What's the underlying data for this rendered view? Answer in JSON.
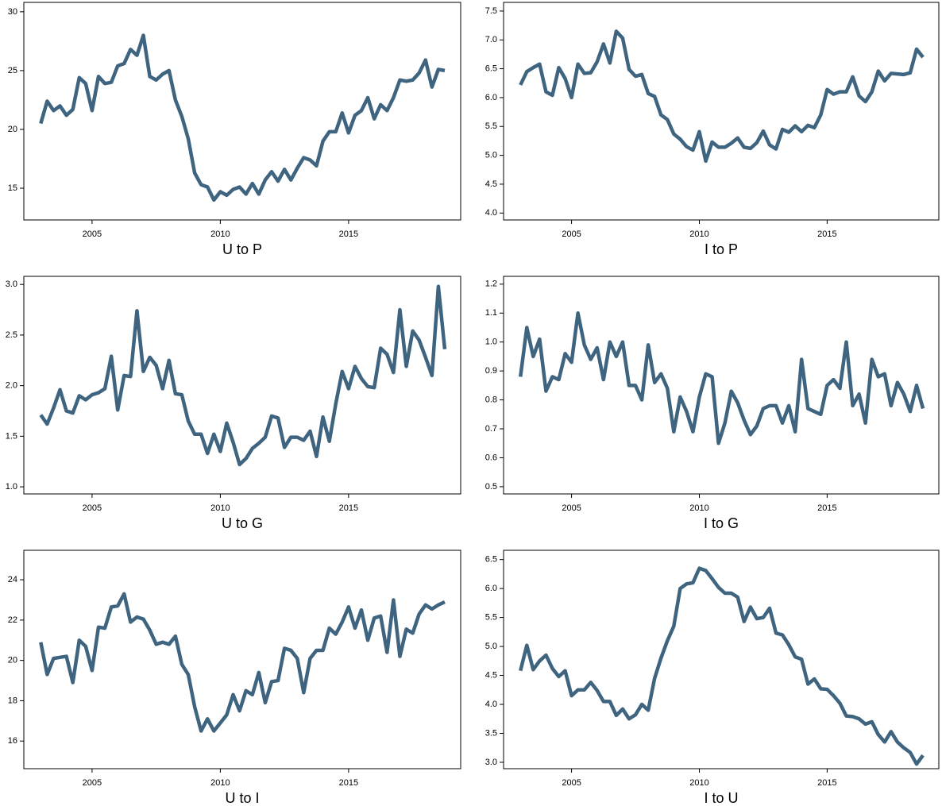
{
  "chart_data": [
    {
      "type": "line",
      "xlabel": "U to P",
      "color": "#3e6480",
      "xlim": [
        2002.34,
        2019.37
      ],
      "xticks": [
        2005,
        2010,
        2015
      ],
      "ylim": [
        12.3,
        30.8
      ],
      "yticks": [
        15,
        20,
        25,
        30
      ],
      "x": [
        2003,
        2003.25,
        2003.5,
        2003.75,
        2004,
        2004.25,
        2004.5,
        2004.75,
        2005,
        2005.25,
        2005.5,
        2005.75,
        2006,
        2006.25,
        2006.5,
        2006.75,
        2007,
        2007.25,
        2007.5,
        2007.75,
        2008,
        2008.25,
        2008.5,
        2008.75,
        2009,
        2009.25,
        2009.5,
        2009.75,
        2010,
        2010.25,
        2010.5,
        2010.75,
        2011,
        2011.25,
        2011.5,
        2011.75,
        2012,
        2012.25,
        2012.5,
        2012.75,
        2013,
        2013.25,
        2013.5,
        2013.75,
        2014,
        2014.25,
        2014.5,
        2014.75,
        2015,
        2015.25,
        2015.5,
        2015.75,
        2016,
        2016.25,
        2016.5,
        2016.75,
        2017,
        2017.25,
        2017.5,
        2017.75,
        2018,
        2018.25,
        2018.5,
        2018.75
      ],
      "values": [
        20.5,
        22.4,
        21.6,
        22.0,
        21.2,
        21.7,
        24.4,
        23.9,
        21.6,
        24.5,
        23.9,
        24.0,
        25.4,
        25.6,
        26.8,
        26.3,
        28.0,
        24.5,
        24.2,
        24.7,
        25.0,
        22.5,
        21.1,
        19.2,
        16.3,
        15.3,
        15.1,
        14.0,
        14.7,
        14.4,
        14.9,
        15.1,
        14.5,
        15.4,
        14.5,
        15.7,
        16.4,
        15.6,
        16.6,
        15.7,
        16.7,
        17.6,
        17.4,
        16.9,
        19.0,
        19.8,
        19.8,
        21.4,
        19.7,
        21.2,
        21.6,
        22.7,
        20.9,
        22.1,
        21.6,
        22.7,
        24.2,
        24.1,
        24.2,
        24.8,
        25.9,
        23.6,
        25.1,
        25.0
      ]
    },
    {
      "type": "line",
      "xlabel": "I to P",
      "color": "#3e6480",
      "xlim": [
        2002.34,
        2019.37
      ],
      "xticks": [
        2005,
        2010,
        2015
      ],
      "ylim": [
        3.88,
        7.65
      ],
      "yticks": [
        {
          "value": 4,
          "label": "4.0"
        },
        4.5,
        {
          "value": 5,
          "label": "5.0"
        },
        5.5,
        {
          "value": 6,
          "label": "6.0"
        },
        6.5,
        {
          "value": 7,
          "label": "7.0"
        },
        7.5
      ],
      "x": [
        2003,
        2003.25,
        2003.5,
        2003.75,
        2004,
        2004.25,
        2004.5,
        2004.75,
        2005,
        2005.25,
        2005.5,
        2005.75,
        2006,
        2006.25,
        2006.5,
        2006.75,
        2007,
        2007.25,
        2007.5,
        2007.75,
        2008,
        2008.25,
        2008.5,
        2008.75,
        2009,
        2009.25,
        2009.5,
        2009.75,
        2010,
        2010.25,
        2010.5,
        2010.75,
        2011,
        2011.25,
        2011.5,
        2011.75,
        2012,
        2012.25,
        2012.5,
        2012.75,
        2013,
        2013.25,
        2013.5,
        2013.75,
        2014,
        2014.25,
        2014.5,
        2014.75,
        2015,
        2015.25,
        2015.5,
        2015.75,
        2016,
        2016.25,
        2016.5,
        2016.75,
        2017,
        2017.25,
        2017.5,
        2017.75,
        2018,
        2018.25,
        2018.5,
        2018.75
      ],
      "values": [
        6.22,
        6.45,
        6.52,
        6.58,
        6.1,
        6.04,
        6.52,
        6.33,
        6.0,
        6.58,
        6.42,
        6.43,
        6.62,
        6.93,
        6.6,
        7.15,
        7.03,
        6.49,
        6.37,
        6.4,
        6.07,
        6.02,
        5.7,
        5.62,
        5.37,
        5.28,
        5.15,
        5.09,
        5.41,
        4.9,
        5.23,
        5.14,
        5.14,
        5.21,
        5.3,
        5.14,
        5.12,
        5.22,
        5.42,
        5.18,
        5.11,
        5.45,
        5.4,
        5.51,
        5.41,
        5.52,
        5.48,
        5.7,
        6.14,
        6.06,
        6.1,
        6.1,
        6.36,
        6.03,
        5.93,
        6.1,
        6.46,
        6.29,
        6.42,
        6.41,
        6.4,
        6.43,
        6.84,
        6.7
      ]
    },
    {
      "type": "line",
      "xlabel": "U to G",
      "color": "#3e6480",
      "xlim": [
        2002.34,
        2019.37
      ],
      "xticks": [
        2005,
        2010,
        2015
      ],
      "ylim": [
        0.93,
        3.08
      ],
      "yticks": [
        {
          "value": 1,
          "label": "1.0"
        },
        1.5,
        {
          "value": 2,
          "label": "2.0"
        },
        2.5,
        {
          "value": 3,
          "label": "3.0"
        }
      ],
      "x": [
        2003,
        2003.25,
        2003.5,
        2003.75,
        2004,
        2004.25,
        2004.5,
        2004.75,
        2005,
        2005.25,
        2005.5,
        2005.75,
        2006,
        2006.25,
        2006.5,
        2006.75,
        2007,
        2007.25,
        2007.5,
        2007.75,
        2008,
        2008.25,
        2008.5,
        2008.75,
        2009,
        2009.25,
        2009.5,
        2009.75,
        2010,
        2010.25,
        2010.5,
        2010.75,
        2011,
        2011.25,
        2011.5,
        2011.75,
        2012,
        2012.25,
        2012.5,
        2012.75,
        2013,
        2013.25,
        2013.5,
        2013.75,
        2014,
        2014.25,
        2014.5,
        2014.75,
        2015,
        2015.25,
        2015.5,
        2015.75,
        2016,
        2016.25,
        2016.5,
        2016.75,
        2017,
        2017.25,
        2017.5,
        2017.75,
        2018,
        2018.25,
        2018.5,
        2018.75
      ],
      "values": [
        1.71,
        1.62,
        1.78,
        1.96,
        1.75,
        1.73,
        1.9,
        1.86,
        1.91,
        1.93,
        1.97,
        2.29,
        1.76,
        2.1,
        2.09,
        2.74,
        2.14,
        2.28,
        2.2,
        1.97,
        2.25,
        1.92,
        1.91,
        1.65,
        1.52,
        1.52,
        1.33,
        1.52,
        1.35,
        1.63,
        1.44,
        1.22,
        1.28,
        1.38,
        1.43,
        1.49,
        1.7,
        1.68,
        1.39,
        1.49,
        1.49,
        1.46,
        1.55,
        1.3,
        1.69,
        1.45,
        1.82,
        2.14,
        1.97,
        2.19,
        2.07,
        1.99,
        1.98,
        2.37,
        2.31,
        2.13,
        2.75,
        2.19,
        2.54,
        2.45,
        2.28,
        2.1,
        2.98,
        2.36
      ]
    },
    {
      "type": "line",
      "xlabel": "I to G",
      "color": "#3e6480",
      "xlim": [
        2002.34,
        2019.37
      ],
      "xticks": [
        2005,
        2010,
        2015
      ],
      "ylim": [
        0.475,
        1.227
      ],
      "yticks": [
        0.5,
        0.6,
        0.7,
        0.8,
        0.9,
        {
          "value": 1,
          "label": "1.0"
        },
        1.1,
        1.2
      ],
      "x": [
        2003,
        2003.25,
        2003.5,
        2003.75,
        2004,
        2004.25,
        2004.5,
        2004.75,
        2005,
        2005.25,
        2005.5,
        2005.75,
        2006,
        2006.25,
        2006.5,
        2006.75,
        2007,
        2007.25,
        2007.5,
        2007.75,
        2008,
        2008.25,
        2008.5,
        2008.75,
        2009,
        2009.25,
        2009.5,
        2009.75,
        2010,
        2010.25,
        2010.5,
        2010.75,
        2011,
        2011.25,
        2011.5,
        2011.75,
        2012,
        2012.25,
        2012.5,
        2012.75,
        2013,
        2013.25,
        2013.5,
        2013.75,
        2014,
        2014.25,
        2014.5,
        2014.75,
        2015,
        2015.25,
        2015.5,
        2015.75,
        2016,
        2016.25,
        2016.5,
        2016.75,
        2017,
        2017.25,
        2017.5,
        2017.75,
        2018,
        2018.25,
        2018.5,
        2018.75
      ],
      "values": [
        0.88,
        1.05,
        0.95,
        1.01,
        0.83,
        0.88,
        0.87,
        0.96,
        0.93,
        1.1,
        0.99,
        0.94,
        0.98,
        0.87,
        1.0,
        0.95,
        1.0,
        0.85,
        0.85,
        0.8,
        0.99,
        0.86,
        0.89,
        0.84,
        0.69,
        0.81,
        0.76,
        0.69,
        0.81,
        0.89,
        0.88,
        0.65,
        0.72,
        0.83,
        0.79,
        0.73,
        0.68,
        0.71,
        0.77,
        0.78,
        0.78,
        0.72,
        0.78,
        0.69,
        0.94,
        0.77,
        0.76,
        0.75,
        0.85,
        0.87,
        0.84,
        1.0,
        0.78,
        0.82,
        0.72,
        0.94,
        0.88,
        0.89,
        0.78,
        0.86,
        0.82,
        0.76,
        0.85,
        0.77
      ]
    },
    {
      "type": "line",
      "xlabel": "U to I",
      "color": "#3e6480",
      "xlim": [
        2002.34,
        2019.37
      ],
      "xticks": [
        2005,
        2010,
        2015
      ],
      "ylim": [
        14.63,
        25.46
      ],
      "yticks": [
        16,
        18,
        20,
        22,
        24
      ],
      "x": [
        2003,
        2003.25,
        2003.5,
        2003.75,
        2004,
        2004.25,
        2004.5,
        2004.75,
        2005,
        2005.25,
        2005.5,
        2005.75,
        2006,
        2006.25,
        2006.5,
        2006.75,
        2007,
        2007.25,
        2007.5,
        2007.75,
        2008,
        2008.25,
        2008.5,
        2008.75,
        2009,
        2009.25,
        2009.5,
        2009.75,
        2010,
        2010.25,
        2010.5,
        2010.75,
        2011,
        2011.25,
        2011.5,
        2011.75,
        2012,
        2012.25,
        2012.5,
        2012.75,
        2013,
        2013.25,
        2013.5,
        2013.75,
        2014,
        2014.25,
        2014.5,
        2014.75,
        2015,
        2015.25,
        2015.5,
        2015.75,
        2016,
        2016.25,
        2016.5,
        2016.75,
        2017,
        2017.25,
        2017.5,
        2017.75,
        2018,
        2018.25,
        2018.5,
        2018.75
      ],
      "values": [
        20.9,
        19.3,
        20.1,
        20.15,
        20.2,
        18.9,
        21.0,
        20.7,
        19.5,
        21.65,
        21.6,
        22.65,
        22.7,
        23.3,
        21.9,
        22.15,
        22.05,
        21.5,
        20.8,
        20.9,
        20.8,
        21.2,
        19.8,
        19.3,
        17.7,
        16.5,
        17.1,
        16.5,
        16.9,
        17.3,
        18.3,
        17.5,
        18.5,
        18.3,
        19.4,
        17.9,
        18.95,
        19.0,
        20.6,
        20.5,
        20.1,
        18.4,
        20.1,
        20.5,
        20.5,
        21.6,
        21.3,
        21.9,
        22.65,
        21.6,
        22.5,
        21.0,
        22.1,
        22.2,
        20.4,
        23.0,
        20.2,
        21.55,
        21.35,
        22.3,
        22.75,
        22.55,
        22.75,
        22.9
      ]
    },
    {
      "type": "line",
      "xlabel": "I to U",
      "color": "#3e6480",
      "xlim": [
        2002.34,
        2019.37
      ],
      "xticks": [
        2005,
        2010,
        2015
      ],
      "ylim": [
        2.89,
        6.66
      ],
      "yticks": [
        {
          "value": 3,
          "label": "3.0"
        },
        3.5,
        {
          "value": 4,
          "label": "4.0"
        },
        4.5,
        {
          "value": 5,
          "label": "5.0"
        },
        5.5,
        {
          "value": 6,
          "label": "6.0"
        },
        6.5
      ],
      "x": [
        2003,
        2003.25,
        2003.5,
        2003.75,
        2004,
        2004.25,
        2004.5,
        2004.75,
        2005,
        2005.25,
        2005.5,
        2005.75,
        2006,
        2006.25,
        2006.5,
        2006.75,
        2007,
        2007.25,
        2007.5,
        2007.75,
        2008,
        2008.25,
        2008.5,
        2008.75,
        2009,
        2009.25,
        2009.5,
        2009.75,
        2010,
        2010.25,
        2010.5,
        2010.75,
        2011,
        2011.25,
        2011.5,
        2011.75,
        2012,
        2012.25,
        2012.5,
        2012.75,
        2013,
        2013.25,
        2013.5,
        2013.75,
        2014,
        2014.25,
        2014.5,
        2014.75,
        2015,
        2015.25,
        2015.5,
        2015.75,
        2016,
        2016.25,
        2016.5,
        2016.75,
        2017,
        2017.25,
        2017.5,
        2017.75,
        2018,
        2018.25,
        2018.5,
        2018.75
      ],
      "values": [
        4.58,
        5.02,
        4.6,
        4.75,
        4.85,
        4.62,
        4.48,
        4.58,
        4.15,
        4.25,
        4.25,
        4.38,
        4.24,
        4.05,
        4.05,
        3.81,
        3.92,
        3.75,
        3.82,
        4.0,
        3.9,
        4.45,
        4.8,
        5.1,
        5.35,
        6.0,
        6.08,
        6.1,
        6.35,
        6.31,
        6.17,
        6.02,
        5.92,
        5.92,
        5.85,
        5.43,
        5.68,
        5.48,
        5.5,
        5.66,
        5.23,
        5.2,
        5.03,
        4.82,
        4.78,
        4.35,
        4.44,
        4.27,
        4.26,
        4.15,
        4.02,
        3.8,
        3.79,
        3.75,
        3.66,
        3.7,
        3.48,
        3.35,
        3.53,
        3.35,
        3.25,
        3.17,
        2.97,
        3.12
      ]
    }
  ]
}
